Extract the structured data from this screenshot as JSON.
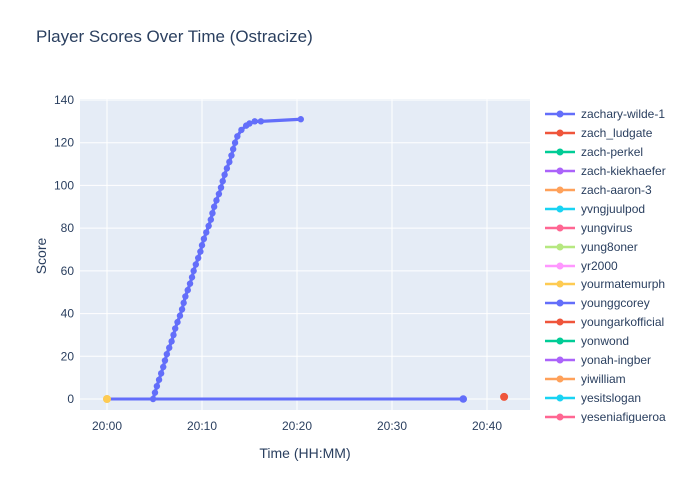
{
  "chart_data": {
    "type": "line",
    "title": "Player Scores Over Time (Ostracize)",
    "xlabel": "Time (HH:MM)",
    "ylabel": "Score",
    "base_time": "20:00",
    "x_ticks": [
      {
        "minutes": 0,
        "label": "20:00"
      },
      {
        "minutes": 10,
        "label": "20:10"
      },
      {
        "minutes": 20,
        "label": "20:20"
      },
      {
        "minutes": 30,
        "label": "20:30"
      },
      {
        "minutes": 40,
        "label": "20:40"
      }
    ],
    "y_ticks": [
      0,
      20,
      40,
      60,
      80,
      100,
      120,
      140
    ],
    "x_range_minutes": [
      -2.85,
      44.5
    ],
    "y_range": [
      -5.2,
      145.5
    ],
    "grid": true,
    "legend_position": "right",
    "plot_bg": "#e5ecf6",
    "grid_color": "#ffffff",
    "text_color": "#2a3f5f",
    "draw_order": [
      "younggcorey",
      "zachary-wilde-1",
      "yourmatemurph",
      "youngarkofficial"
    ],
    "series": [
      {
        "name": "zachary-wilde-1",
        "color": "#636efa",
        "line_width": 3.2,
        "marker_r": 3.2,
        "points": [
          [
            4.85,
            0
          ],
          [
            5.05,
            3
          ],
          [
            5.25,
            6
          ],
          [
            5.48,
            9
          ],
          [
            5.7,
            12
          ],
          [
            5.92,
            15
          ],
          [
            6.1,
            18
          ],
          [
            6.3,
            21
          ],
          [
            6.55,
            24
          ],
          [
            6.8,
            27
          ],
          [
            7.0,
            30
          ],
          [
            7.18,
            33
          ],
          [
            7.42,
            36
          ],
          [
            7.68,
            39
          ],
          [
            7.9,
            42
          ],
          [
            8.07,
            45
          ],
          [
            8.25,
            48
          ],
          [
            8.5,
            51
          ],
          [
            8.74,
            54
          ],
          [
            8.95,
            57
          ],
          [
            9.12,
            60
          ],
          [
            9.35,
            63
          ],
          [
            9.6,
            66
          ],
          [
            9.83,
            69
          ],
          [
            10.0,
            72
          ],
          [
            10.2,
            75
          ],
          [
            10.45,
            78
          ],
          [
            10.7,
            81
          ],
          [
            10.93,
            84
          ],
          [
            11.1,
            87
          ],
          [
            11.28,
            90
          ],
          [
            11.52,
            93
          ],
          [
            11.78,
            96
          ],
          [
            12.0,
            99
          ],
          [
            12.18,
            102
          ],
          [
            12.38,
            105
          ],
          [
            12.62,
            108
          ],
          [
            12.88,
            111
          ],
          [
            13.1,
            114
          ],
          [
            13.28,
            117
          ],
          [
            13.48,
            120
          ],
          [
            13.72,
            123
          ],
          [
            14.15,
            126
          ],
          [
            14.65,
            128
          ],
          [
            15.0,
            129
          ],
          [
            15.55,
            130
          ],
          [
            16.2,
            130
          ],
          [
            20.4,
            131
          ]
        ]
      },
      {
        "name": "zach_ludgate",
        "color": "#ef553b",
        "line_width": 2.5,
        "marker_r": 4,
        "points": []
      },
      {
        "name": "zach-perkel",
        "color": "#00cc96",
        "line_width": 2.5,
        "marker_r": 4,
        "points": []
      },
      {
        "name": "zach-kiekhaefer",
        "color": "#ab63fa",
        "line_width": 2.5,
        "marker_r": 4,
        "points": []
      },
      {
        "name": "zach-aaron-3",
        "color": "#ffa15a",
        "line_width": 2.5,
        "marker_r": 4,
        "points": []
      },
      {
        "name": "yvngjuulpod",
        "color": "#19d3f3",
        "line_width": 2.5,
        "marker_r": 4,
        "points": []
      },
      {
        "name": "yungvirus",
        "color": "#ff6692",
        "line_width": 2.5,
        "marker_r": 4,
        "points": []
      },
      {
        "name": "yung8oner",
        "color": "#b6e880",
        "line_width": 2.5,
        "marker_r": 4,
        "points": []
      },
      {
        "name": "yr2000",
        "color": "#ff97ff",
        "line_width": 2.5,
        "marker_r": 4,
        "points": []
      },
      {
        "name": "yourmatemurph",
        "color": "#fecb52",
        "line_width": 2.5,
        "marker_r": 4,
        "points": [
          [
            0,
            0
          ]
        ]
      },
      {
        "name": "younggcorey",
        "color": "#636efa",
        "line_width": 3,
        "marker_r": 3.8,
        "points": [
          [
            0,
            0
          ],
          [
            37.5,
            0
          ]
        ]
      },
      {
        "name": "youngarkofficial",
        "color": "#ef553b",
        "line_width": 2.5,
        "marker_r": 4,
        "points": [
          [
            41.8,
            1
          ]
        ]
      },
      {
        "name": "yonwond",
        "color": "#00cc96",
        "line_width": 2.5,
        "marker_r": 4,
        "points": []
      },
      {
        "name": "yonah-ingber",
        "color": "#ab63fa",
        "line_width": 2.5,
        "marker_r": 4,
        "points": []
      },
      {
        "name": "yiwilliam",
        "color": "#ffa15a",
        "line_width": 2.5,
        "marker_r": 4,
        "points": []
      },
      {
        "name": "yesitslogan",
        "color": "#19d3f3",
        "line_width": 2.5,
        "marker_r": 4,
        "points": []
      },
      {
        "name": "yeseniafigueroa",
        "color": "#ff6692",
        "line_width": 2.5,
        "marker_r": 4,
        "points": []
      }
    ]
  }
}
